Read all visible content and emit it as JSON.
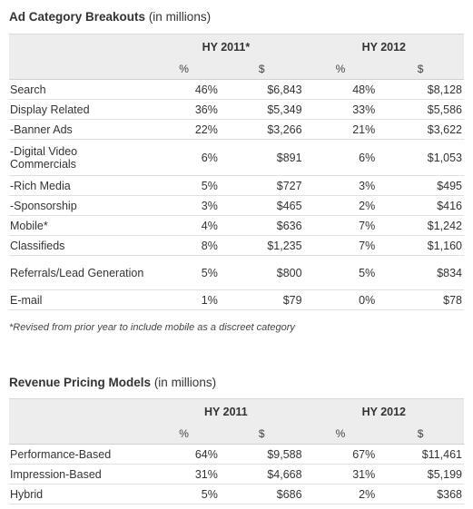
{
  "ad_category": {
    "title": "Ad Category Breakouts",
    "title_suffix": "(in millions)",
    "period_1": "HY 2011*",
    "period_2": "HY 2012",
    "unit_pct": "%",
    "unit_usd": "$",
    "rows": [
      {
        "label": "Search",
        "p1_pct": "46%",
        "p1_usd": "$6,843",
        "p2_pct": "48%",
        "p2_usd": "$8,128"
      },
      {
        "label": "Display Related",
        "p1_pct": "36%",
        "p1_usd": "$5,349",
        "p2_pct": "33%",
        "p2_usd": "$5,586"
      },
      {
        "label": "-Banner Ads",
        "p1_pct": "22%",
        "p1_usd": "$3,266",
        "p2_pct": "21%",
        "p2_usd": "$3,622"
      },
      {
        "label": "-Digital Video Commercials",
        "p1_pct": "6%",
        "p1_usd": "$891",
        "p2_pct": "6%",
        "p2_usd": "$1,053"
      },
      {
        "label": "-Rich Media",
        "p1_pct": "5%",
        "p1_usd": "$727",
        "p2_pct": "3%",
        "p2_usd": "$495"
      },
      {
        "label": "-Sponsorship",
        "p1_pct": "3%",
        "p1_usd": "$465",
        "p2_pct": "2%",
        "p2_usd": "$416"
      },
      {
        "label": "Mobile*",
        "p1_pct": "4%",
        "p1_usd": "$636",
        "p2_pct": "7%",
        "p2_usd": "$1,242"
      },
      {
        "label": "Classifieds",
        "p1_pct": "8%",
        "p1_usd": "$1,235",
        "p2_pct": "7%",
        "p2_usd": "$1,160"
      },
      {
        "label": "Referrals/Lead Generation",
        "p1_pct": "5%",
        "p1_usd": "$800",
        "p2_pct": "5%",
        "p2_usd": "$834"
      },
      {
        "label": "E-mail",
        "p1_pct": "1%",
        "p1_usd": "$79",
        "p2_pct": "0%",
        "p2_usd": "$78"
      }
    ],
    "footnote": "*Revised from prior year to include mobile as a discreet category"
  },
  "pricing": {
    "title": "Revenue Pricing Models",
    "title_suffix": "(in millions)",
    "period_1": "HY 2011",
    "period_2": "HY 2012",
    "unit_pct": "%",
    "unit_usd": "$",
    "rows": [
      {
        "label": "Performance-Based",
        "p1_pct": "64%",
        "p1_usd": "$9,588",
        "p2_pct": "67%",
        "p2_usd": "$11,461"
      },
      {
        "label": "Impression-Based",
        "p1_pct": "31%",
        "p1_usd": "$4,668",
        "p2_pct": "31%",
        "p2_usd": "$5,199"
      },
      {
        "label": "Hybrid",
        "p1_pct": "5%",
        "p1_usd": "$686",
        "p2_pct": "2%",
        "p2_usd": "$368"
      }
    ]
  }
}
